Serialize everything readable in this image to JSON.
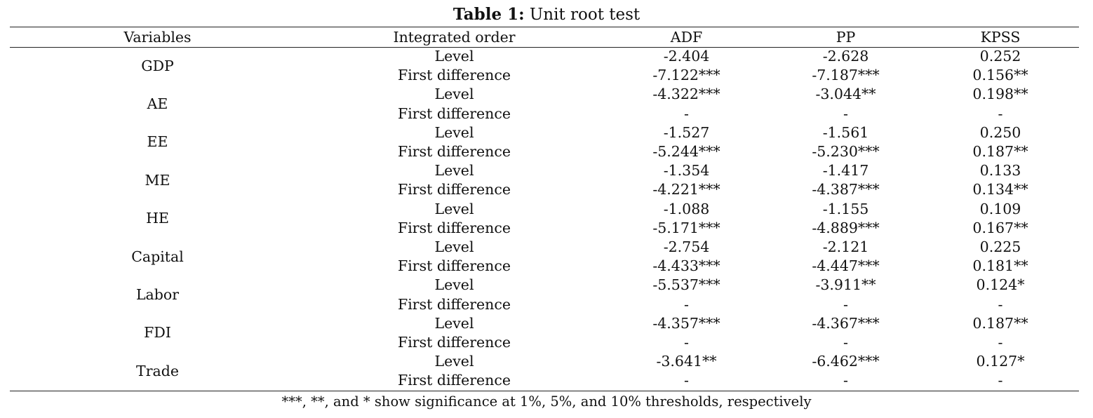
{
  "title": {
    "bold": "Table 1:",
    "text": "Unit root test"
  },
  "headers": [
    "Variables",
    "Integrated order",
    "ADF",
    "PP",
    "KPSS"
  ],
  "rows": [
    {
      "variable": "GDP",
      "level": [
        "Level",
        "-2.404",
        "-2.628",
        "0.252"
      ],
      "first": [
        "First difference",
        "-7.122***",
        "-7.187***",
        "0.156**"
      ]
    },
    {
      "variable": "AE",
      "level": [
        "Level",
        "-4.322***",
        "-3.044**",
        "0.198**"
      ],
      "first": [
        "First difference",
        "-",
        "-",
        "-"
      ]
    },
    {
      "variable": "EE",
      "level": [
        "Level",
        "-1.527",
        "-1.561",
        "0.250"
      ],
      "first": [
        "First difference",
        "-5.244***",
        "-5.230***",
        "0.187**"
      ]
    },
    {
      "variable": "ME",
      "level": [
        "Level",
        "-1.354",
        "-1.417",
        "0.133"
      ],
      "first": [
        "First difference",
        "-4.221***",
        "-4.387***",
        "0.134**"
      ]
    },
    {
      "variable": "HE",
      "level": [
        "Level",
        "-1.088",
        "-1.155",
        "0.109"
      ],
      "first": [
        "First difference",
        "-5.171***",
        "-4.889***",
        "0.167**"
      ]
    },
    {
      "variable": "Capital",
      "level": [
        "Level",
        "-2.754",
        "-2.121",
        "0.225"
      ],
      "first": [
        "First difference",
        "-4.433***",
        "-4.447***",
        "0.181**"
      ]
    },
    {
      "variable": "Labor",
      "level": [
        "Level",
        "-5.537***",
        "-3.911**",
        "0.124*"
      ],
      "first": [
        "First difference",
        "-",
        "-",
        "-"
      ]
    },
    {
      "variable": "FDI",
      "level": [
        "Level",
        "-4.357***",
        "-4.367***",
        "0.187**"
      ],
      "first": [
        "First difference",
        "-",
        "-",
        "-"
      ]
    },
    {
      "variable": "Trade",
      "level": [
        "Level",
        "-3.641**",
        "-6.462***",
        "0.127*"
      ],
      "first": [
        "First difference",
        "-",
        "-",
        "-"
      ]
    }
  ],
  "note": "***, **, and * show significance at 1%, 5%, and 10% thresholds, respectively"
}
